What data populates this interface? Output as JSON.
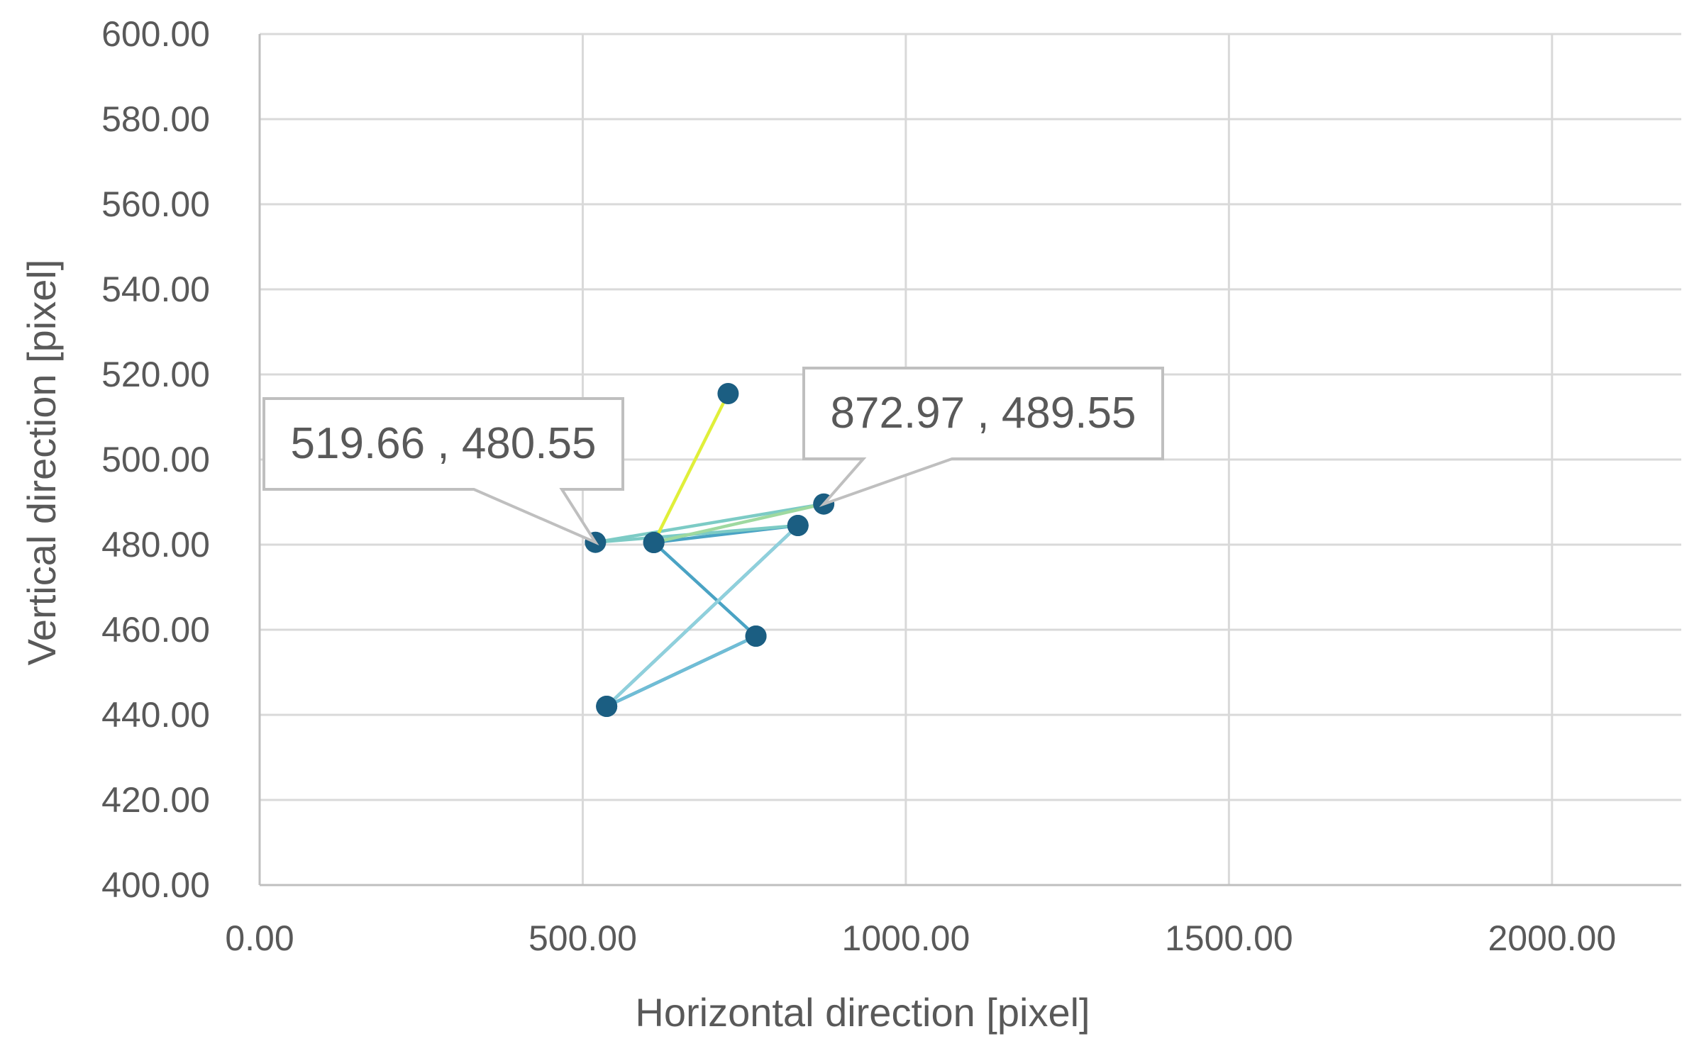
{
  "chart_data": {
    "type": "scatter",
    "title": "",
    "xlabel": "Horizontal direction [pixel]",
    "ylabel": "Vertical direction [pixel]",
    "xlim": [
      0,
      2200
    ],
    "ylim": [
      400,
      600
    ],
    "x_ticks": [
      0,
      500,
      1000,
      1500,
      2000
    ],
    "x_tick_labels": [
      "0.00",
      "500.00",
      "1000.00",
      "1500.00",
      "2000.00"
    ],
    "y_ticks": [
      400,
      420,
      440,
      460,
      480,
      500,
      520,
      540,
      560,
      580,
      600
    ],
    "y_tick_labels": [
      "400.00",
      "420.00",
      "440.00",
      "460.00",
      "480.00",
      "500.00",
      "520.00",
      "540.00",
      "560.00",
      "580.00",
      "600.00"
    ],
    "grid": true,
    "legend": "none",
    "marker_color": "#1b5e82",
    "segment_colors": [
      "#1f5f85",
      "#2b7fa3",
      "#4aa3c4",
      "#6fbdd6",
      "#8fd0dc",
      "#7ccbc5",
      "#9ed9a0",
      "#e0ef3a"
    ],
    "gridline_color": "#d9d9d9",
    "axis_color": "#bfbfbf",
    "series": [
      {
        "points": [
          {
            "x": 768.0,
            "y": 458.5
          },
          {
            "x": 537.0,
            "y": 442.0
          },
          {
            "x": 833.0,
            "y": 484.5
          },
          {
            "x": 610.0,
            "y": 480.5
          },
          {
            "x": 768.0,
            "y": 458.5
          },
          {
            "x": 537.0,
            "y": 442.0
          },
          {
            "x": 833.0,
            "y": 484.5
          },
          {
            "x": 519.66,
            "y": 480.55
          },
          {
            "x": 872.97,
            "y": 489.55
          },
          {
            "x": 610.0,
            "y": 480.5
          },
          {
            "x": 725.0,
            "y": 515.5
          }
        ]
      }
    ],
    "annotations": [
      {
        "text": "519.66 , 480.55",
        "x": 519.66,
        "y": 480.55
      },
      {
        "text": "872.97 , 489.55",
        "x": 872.97,
        "y": 489.55
      }
    ]
  }
}
